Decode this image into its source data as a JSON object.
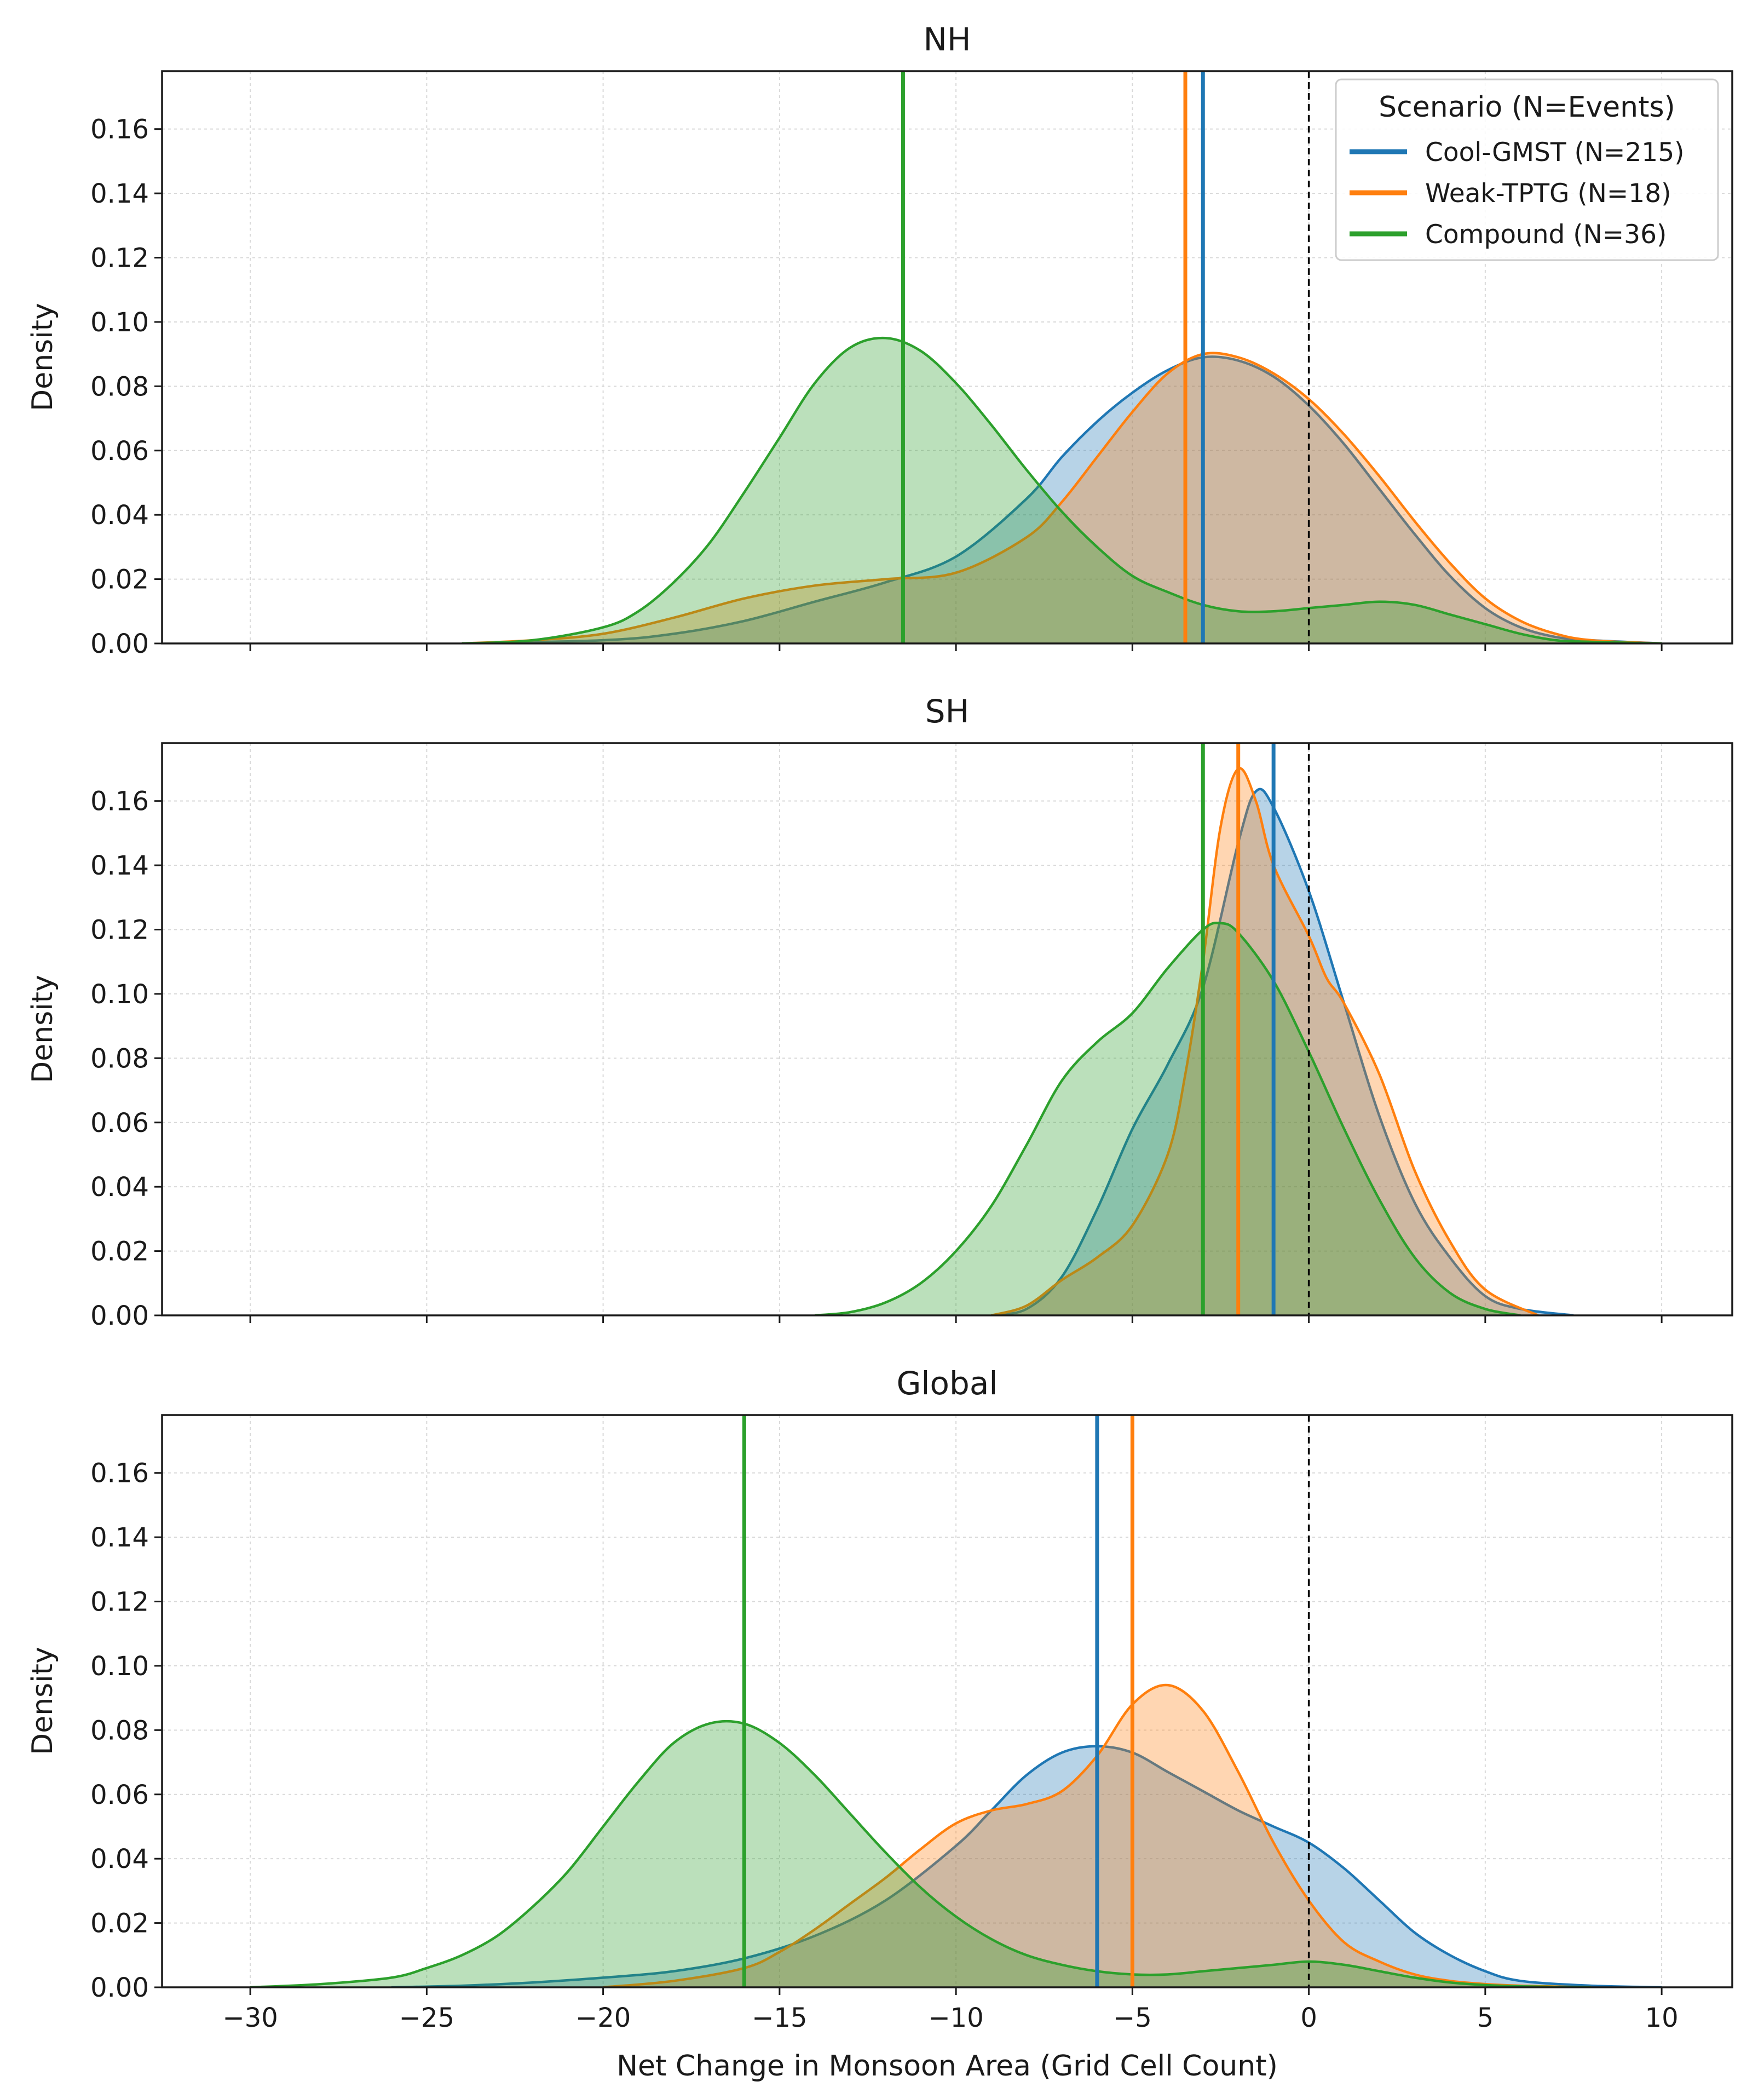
{
  "chart_data": {
    "type": "kde",
    "xlabel": "Net Change in Monsoon Area (Grid Cell Count)",
    "ylabel": "Density",
    "xlim": [
      -32.5,
      12
    ],
    "ylim": [
      0,
      0.178
    ],
    "xticks": [
      -30,
      -25,
      -20,
      -15,
      -10,
      -5,
      0,
      5,
      10
    ],
    "xtick_labels": [
      "−30",
      "−25",
      "−20",
      "−15",
      "−10",
      "−5",
      "0",
      "5",
      "10"
    ],
    "yticks": [
      0,
      0.02,
      0.04,
      0.06,
      0.08,
      0.1,
      0.12,
      0.14,
      0.16
    ],
    "ytick_labels": [
      "0.00",
      "0.02",
      "0.04",
      "0.06",
      "0.08",
      "0.10",
      "0.12",
      "0.14",
      "0.16"
    ],
    "grid": true,
    "reference_line": {
      "x": 0,
      "style": "dashed",
      "color": "#000000"
    },
    "legend": {
      "title": "Scenario (N=Events)",
      "location": "upper right",
      "entries": [
        {
          "label": "Cool-GMST (N=215)",
          "color": "#1f77b4"
        },
        {
          "label": "Weak-TPTG (N=18)",
          "color": "#ff7f0e"
        },
        {
          "label": "Compound (N=36)",
          "color": "#2ca02c"
        }
      ]
    },
    "panels": [
      {
        "title": "NH",
        "series": [
          {
            "name": "Cool-GMST (N=215)",
            "color": "#1f77b4",
            "median": -3,
            "x": [
              -24,
              -20,
              -18,
              -16,
              -14,
              -12,
              -10,
              -8,
              -7,
              -6,
              -5,
              -4,
              -3,
              -2,
              -1,
              0,
              1,
              2,
              3,
              4,
              5,
              6,
              7,
              8,
              10
            ],
            "density": [
              0,
              0.001,
              0.003,
              0.007,
              0.013,
              0.019,
              0.027,
              0.045,
              0.058,
              0.069,
              0.078,
              0.085,
              0.089,
              0.088,
              0.083,
              0.074,
              0.062,
              0.048,
              0.034,
              0.021,
              0.011,
              0.005,
              0.002,
              0.001,
              0
            ]
          },
          {
            "name": "Weak-TPTG (N=18)",
            "color": "#ff7f0e",
            "median": -3.5,
            "x": [
              -24,
              -22,
              -20,
              -18,
              -16,
              -14,
              -12,
              -10,
              -8,
              -7,
              -6,
              -5,
              -4,
              -3,
              -2,
              -1,
              0,
              1,
              2,
              3,
              4,
              5,
              6,
              7,
              8,
              10
            ],
            "density": [
              0,
              0.001,
              0.003,
              0.008,
              0.014,
              0.018,
              0.02,
              0.022,
              0.033,
              0.044,
              0.058,
              0.072,
              0.084,
              0.09,
              0.089,
              0.084,
              0.076,
              0.065,
              0.052,
              0.038,
              0.025,
              0.014,
              0.007,
              0.003,
              0.001,
              0
            ]
          },
          {
            "name": "Compound (N=36)",
            "color": "#2ca02c",
            "median": -11.5,
            "x": [
              -24,
              -22,
              -20,
              -19,
              -18,
              -17,
              -16,
              -15,
              -14,
              -13,
              -12,
              -11,
              -10,
              -9,
              -8,
              -7,
              -6,
              -5,
              -4,
              -3,
              -2,
              -1,
              0,
              1,
              2,
              3,
              4,
              5,
              6,
              7,
              8,
              10
            ],
            "density": [
              0,
              0.001,
              0.005,
              0.01,
              0.019,
              0.031,
              0.047,
              0.064,
              0.081,
              0.092,
              0.095,
              0.091,
              0.081,
              0.068,
              0.054,
              0.041,
              0.03,
              0.021,
              0.016,
              0.012,
              0.01,
              0.01,
              0.011,
              0.012,
              0.013,
              0.012,
              0.009,
              0.006,
              0.003,
              0.001,
              0.0005,
              0
            ]
          }
        ]
      },
      {
        "title": "SH",
        "series": [
          {
            "name": "Cool-GMST (N=215)",
            "color": "#1f77b4",
            "median": -1,
            "x": [
              -9,
              -8,
              -7,
              -6,
              -5,
              -4,
              -3,
              -2,
              -1.5,
              -1,
              0,
              1,
              2,
              3,
              4,
              5,
              6,
              7.5
            ],
            "density": [
              0,
              0.002,
              0.012,
              0.033,
              0.058,
              0.078,
              0.102,
              0.147,
              0.163,
              0.158,
              0.132,
              0.097,
              0.062,
              0.035,
              0.018,
              0.006,
              0.002,
              0
            ]
          },
          {
            "name": "Weak-TPTG (N=18)",
            "color": "#ff7f0e",
            "median": -2,
            "x": [
              -9,
              -8,
              -7,
              -6,
              -5,
              -4,
              -3.5,
              -3,
              -2.5,
              -2,
              -1.5,
              -1,
              0,
              0.5,
              1,
              2,
              3,
              4,
              5,
              6.5
            ],
            "density": [
              0,
              0.003,
              0.011,
              0.018,
              0.028,
              0.05,
              0.075,
              0.11,
              0.152,
              0.17,
              0.16,
              0.14,
              0.118,
              0.105,
              0.097,
              0.075,
              0.045,
              0.023,
              0.008,
              0
            ]
          },
          {
            "name": "Compound (N=36)",
            "color": "#2ca02c",
            "median": -3,
            "x": [
              -14,
              -13,
              -12,
              -11,
              -10,
              -9,
              -8,
              -7,
              -6,
              -5,
              -4,
              -3,
              -2.5,
              -2,
              -1,
              0,
              1,
              2,
              3,
              4,
              5,
              6
            ],
            "density": [
              0,
              0.001,
              0.004,
              0.01,
              0.02,
              0.034,
              0.053,
              0.073,
              0.085,
              0.094,
              0.108,
              0.12,
              0.122,
              0.119,
              0.104,
              0.082,
              0.058,
              0.036,
              0.018,
              0.007,
              0.002,
              0
            ]
          }
        ]
      },
      {
        "title": "Global",
        "series": [
          {
            "name": "Cool-GMST (N=215)",
            "color": "#1f77b4",
            "median": -6,
            "x": [
              -26,
              -24,
              -22,
              -20,
              -18,
              -16,
              -14,
              -12,
              -10,
              -9,
              -8,
              -7,
              -6,
              -5,
              -4,
              -3,
              -2,
              -1,
              0,
              1,
              2,
              3,
              4,
              5,
              6,
              8,
              10
            ],
            "density": [
              0,
              0.0005,
              0.0015,
              0.003,
              0.005,
              0.009,
              0.016,
              0.027,
              0.044,
              0.055,
              0.066,
              0.073,
              0.075,
              0.073,
              0.067,
              0.061,
              0.055,
              0.05,
              0.045,
              0.037,
              0.027,
              0.017,
              0.01,
              0.005,
              0.002,
              0.0005,
              0
            ]
          },
          {
            "name": "Weak-TPTG (N=18)",
            "color": "#ff7f0e",
            "median": -5,
            "x": [
              -20,
              -18,
              -16,
              -15,
              -14,
              -13,
              -12,
              -11,
              -10,
              -9,
              -8,
              -7,
              -6,
              -5,
              -4,
              -3,
              -2,
              -1,
              0,
              1,
              2,
              3,
              4,
              5,
              6,
              8
            ],
            "density": [
              0,
              0.002,
              0.006,
              0.011,
              0.018,
              0.026,
              0.034,
              0.043,
              0.051,
              0.055,
              0.057,
              0.061,
              0.072,
              0.088,
              0.094,
              0.086,
              0.067,
              0.045,
              0.027,
              0.014,
              0.008,
              0.004,
              0.002,
              0.001,
              0.0005,
              0
            ]
          },
          {
            "name": "Compound (N=36)",
            "color": "#2ca02c",
            "median": -16,
            "x": [
              -30,
              -28,
              -26,
              -25,
              -24,
              -23,
              -22,
              -21,
              -20,
              -19,
              -18,
              -17,
              -16,
              -15,
              -14,
              -13,
              -12,
              -11,
              -10,
              -9,
              -8,
              -7,
              -6,
              -5,
              -4,
              -3,
              -2,
              -1,
              0,
              1,
              2,
              3,
              4,
              5,
              6,
              8
            ],
            "density": [
              0,
              0.001,
              0.003,
              0.006,
              0.01,
              0.016,
              0.025,
              0.036,
              0.05,
              0.064,
              0.076,
              0.082,
              0.082,
              0.076,
              0.066,
              0.054,
              0.042,
              0.031,
              0.022,
              0.015,
              0.01,
              0.007,
              0.005,
              0.004,
              0.004,
              0.005,
              0.006,
              0.007,
              0.008,
              0.007,
              0.005,
              0.003,
              0.0015,
              0.0007,
              0.0003,
              0
            ]
          }
        ]
      }
    ]
  }
}
